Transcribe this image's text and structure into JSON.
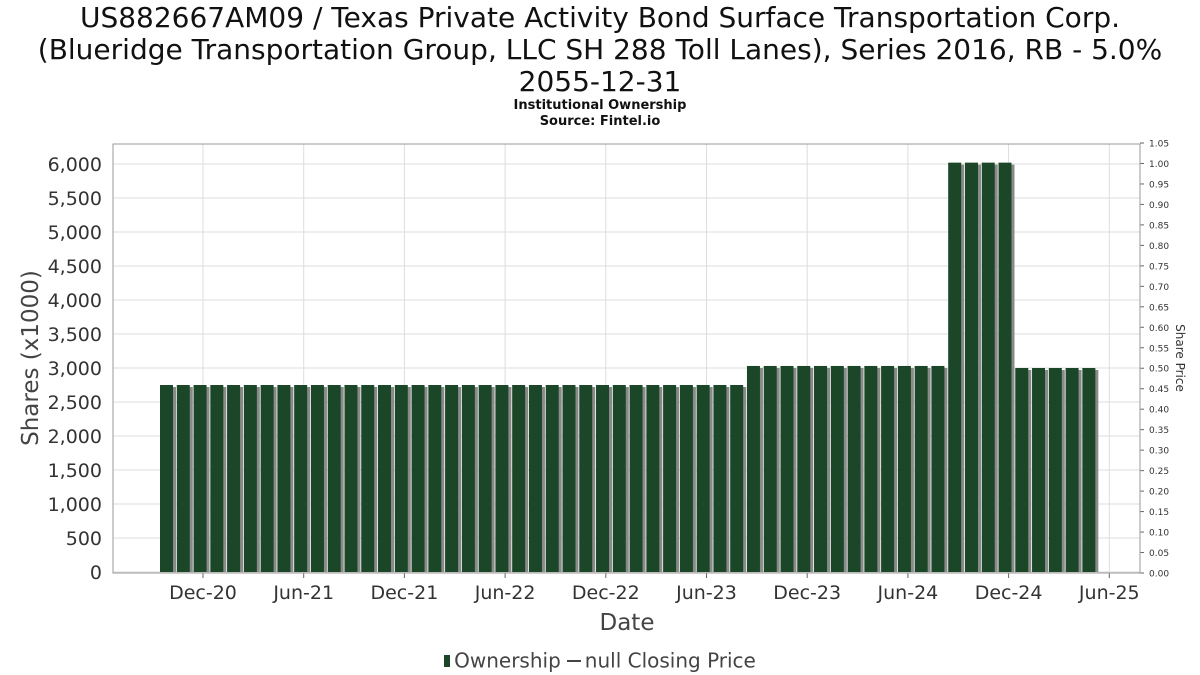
{
  "title_lines": [
    "US882667AM09 / Texas Private Activity Bond Surface Transportation Corp.",
    "(Blueridge Transportation Group, LLC SH 288 Toll Lanes), Series 2016, RB - 5.0%",
    "2055-12-31"
  ],
  "subtitle": "Institutional Ownership",
  "source": "Source: Fintel.io",
  "legend": {
    "ownership": "Ownership",
    "price": "null Closing Price"
  },
  "colors": {
    "bar": "#1b4627",
    "bar_shadow": "#8a8a8a",
    "grid": "#dddddd"
  },
  "chart_data": {
    "type": "bar",
    "xlabel": "Date",
    "ylabel": "Shares (x1000)",
    "y2label": "Share Price",
    "ylim": [
      0,
      6300
    ],
    "y2lim": [
      0,
      1.05
    ],
    "yticks": [
      0,
      500,
      1000,
      1500,
      2000,
      2500,
      3000,
      3500,
      4000,
      4500,
      5000,
      5500,
      6000
    ],
    "yticklabels": [
      "0",
      "500",
      "1,000",
      "1,500",
      "2,000",
      "2,500",
      "3,000",
      "3,500",
      "4,000",
      "4,500",
      "5,000",
      "5,500",
      "6,000"
    ],
    "y2ticklabels": [
      "0.00",
      "0.05",
      "0.10",
      "0.15",
      "0.20",
      "0.25",
      "0.30",
      "0.35",
      "0.40",
      "0.45",
      "0.50",
      "0.55",
      "0.60",
      "0.65",
      "0.70",
      "0.75",
      "0.80",
      "0.85",
      "0.90",
      "0.95",
      "1.00",
      "1.05"
    ],
    "xticklabels": [
      "Dec-20",
      "Jun-21",
      "Dec-21",
      "Jun-22",
      "Dec-22",
      "Jun-23",
      "Dec-23",
      "Jun-24",
      "Dec-24",
      "Jun-25"
    ],
    "grid": true,
    "legend_position": "bottom",
    "series": [
      {
        "name": "Ownership",
        "values": [
          2750,
          2750,
          2750,
          2750,
          2750,
          2750,
          2750,
          2750,
          2750,
          2750,
          2750,
          2750,
          2750,
          2750,
          2750,
          2750,
          2750,
          2750,
          2750,
          2750,
          2750,
          2750,
          2750,
          2750,
          2750,
          2750,
          2750,
          2750,
          2750,
          2750,
          2750,
          2750,
          2750,
          2750,
          2750,
          3030,
          3030,
          3030,
          3030,
          3030,
          3030,
          3030,
          3030,
          3030,
          3030,
          3030,
          3030,
          6020,
          6020,
          6020,
          6020,
          3000,
          3000,
          3000,
          3000,
          3000
        ]
      }
    ]
  }
}
